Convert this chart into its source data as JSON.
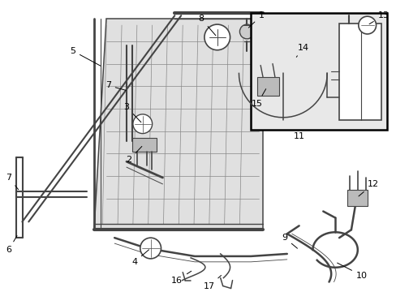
{
  "bg_color": "#ffffff",
  "line_color": "#444444",
  "label_color": "#000000",
  "box_bg": "#e8e8e8",
  "figsize": [
    4.89,
    3.6
  ],
  "dpi": 100
}
